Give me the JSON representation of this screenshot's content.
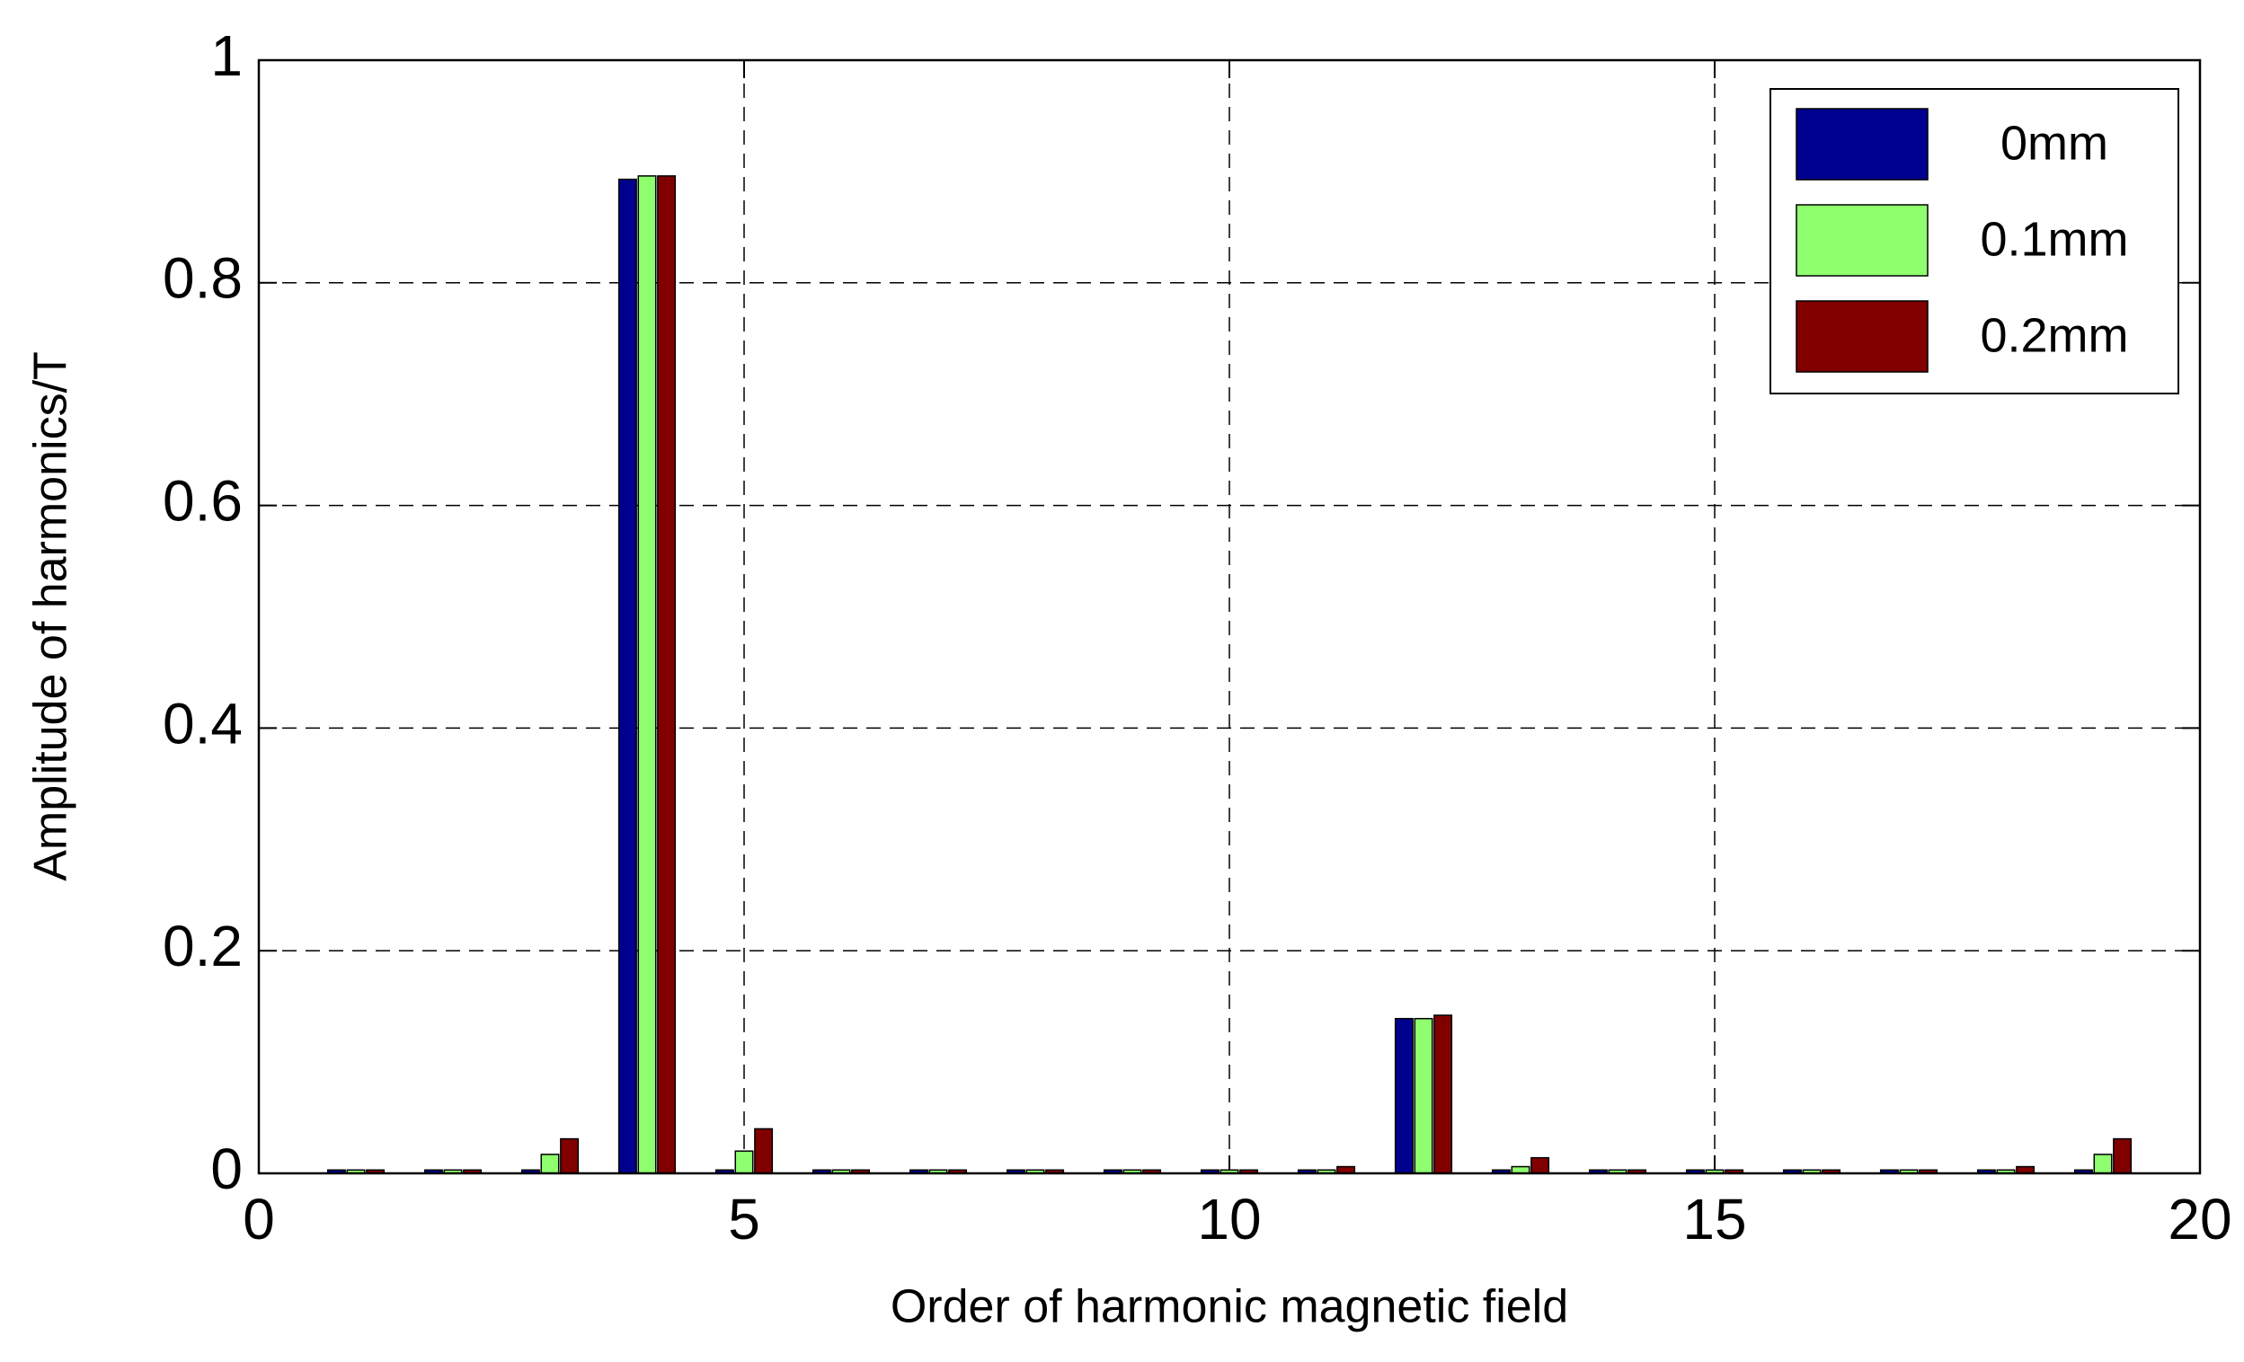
{
  "chart_data": {
    "type": "bar",
    "x_label": "Order of harmonic magnetic field",
    "y_label": "Amplitude of harmonics/T",
    "x": [
      1,
      2,
      3,
      4,
      5,
      6,
      7,
      8,
      9,
      10,
      11,
      12,
      13,
      14,
      15,
      16,
      17,
      18,
      19
    ],
    "series": [
      {
        "name": "0mm",
        "color": "#00008f",
        "values": [
          0.003,
          0.003,
          0.003,
          0.893,
          0.003,
          0.003,
          0.003,
          0.003,
          0.003,
          0.003,
          0.003,
          0.139,
          0.003,
          0.003,
          0.003,
          0.003,
          0.003,
          0.003,
          0.003
        ]
      },
      {
        "name": "0.1mm",
        "color": "#8fff70",
        "values": [
          0.003,
          0.003,
          0.017,
          0.896,
          0.02,
          0.003,
          0.003,
          0.003,
          0.003,
          0.003,
          0.003,
          0.139,
          0.006,
          0.003,
          0.003,
          0.003,
          0.003,
          0.003,
          0.017
        ]
      },
      {
        "name": "0.2mm",
        "color": "#800000",
        "values": [
          0.003,
          0.003,
          0.031,
          0.896,
          0.04,
          0.003,
          0.003,
          0.003,
          0.003,
          0.003,
          0.006,
          0.142,
          0.014,
          0.003,
          0.003,
          0.003,
          0.003,
          0.006,
          0.031
        ]
      }
    ],
    "xlim": [
      0,
      20
    ],
    "xticks": [
      0,
      5,
      10,
      15,
      20
    ],
    "ylim": [
      0,
      1
    ],
    "yticks": [
      0,
      0.2,
      0.4,
      0.6,
      0.8,
      1
    ],
    "grid": true,
    "legend": "upper right"
  }
}
